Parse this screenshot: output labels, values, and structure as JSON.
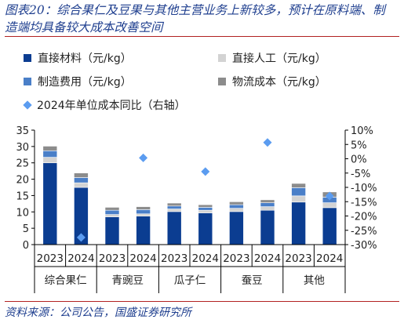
{
  "header": {
    "title_line1": "图表20：综合果仁及豆果与其他主营业务上新较多，预计在原料端、制",
    "title_line2": "造端均具备较大成本改善空间"
  },
  "footer": {
    "source": "资料来源：公司公告，国盛证券研究所"
  },
  "colors": {
    "title": "#1f3f8f",
    "rule": "#b22222",
    "material": "#0b3d91",
    "labor": "#d3d3d3",
    "manufacturing": "#4a7fc8",
    "logistics": "#8c8c8c",
    "yoy": "#5b9cf0"
  },
  "chart_data": {
    "type": "bar",
    "stacked": true,
    "groups": [
      "综合果仁",
      "青豌豆",
      "瓜子仁",
      "蚕豆",
      "其他"
    ],
    "categories": [
      "2023",
      "2024",
      "2023",
      "2024",
      "2023",
      "2024",
      "2023",
      "2024",
      "2023",
      "2024"
    ],
    "series": [
      {
        "name": "直接材料（元/kg）",
        "color": "#0b3d91",
        "values": [
          25.0,
          17.5,
          8.5,
          8.7,
          10.1,
          9.7,
          10.1,
          10.5,
          13.0,
          11.3
        ]
      },
      {
        "name": "直接人工（元/kg）",
        "color": "#d3d3d3",
        "values": [
          1.7,
          1.4,
          0.7,
          0.7,
          0.8,
          0.8,
          1.0,
          1.1,
          1.9,
          1.5
        ]
      },
      {
        "name": "制造费用（元/kg）",
        "color": "#4a7fc8",
        "values": [
          2.0,
          1.6,
          1.3,
          1.3,
          0.9,
          0.9,
          1.1,
          1.2,
          2.5,
          1.7
        ]
      },
      {
        "name": "物流成本（元/kg）",
        "color": "#8c8c8c",
        "values": [
          1.4,
          1.4,
          0.9,
          0.9,
          0.9,
          0.8,
          0.9,
          0.9,
          1.3,
          1.6
        ]
      }
    ],
    "line_series": {
      "name": "2024年单位成本同比（右轴）",
      "color": "#5b9cf0",
      "values": [
        null,
        -27.5,
        null,
        0.3,
        null,
        -4.5,
        null,
        5.7,
        null,
        -13.0
      ]
    },
    "ylim": [
      0,
      35
    ],
    "yticks": [
      "0",
      "5",
      "10",
      "15",
      "20",
      "25",
      "30",
      "35"
    ],
    "y2lim": [
      -30,
      10
    ],
    "y2ticks": [
      "-30%",
      "-25%",
      "-20%",
      "-15%",
      "-10%",
      "-5%",
      "0%",
      "5%",
      "10%"
    ],
    "grid": false,
    "legend_position": "top"
  }
}
